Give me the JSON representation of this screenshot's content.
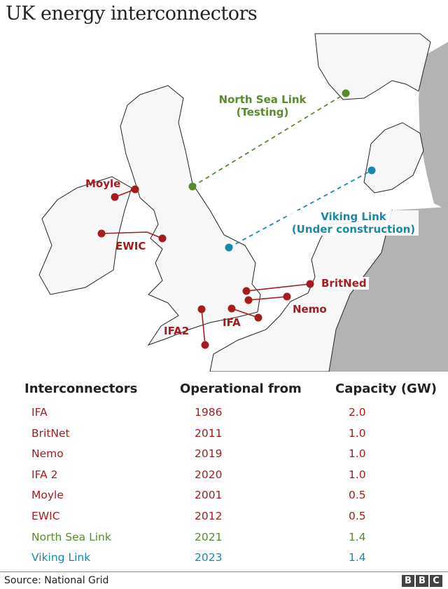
{
  "title": "UK energy interconnectors",
  "map": {
    "links": [
      {
        "label": "Moyle",
        "color": "#a51c1c",
        "style": "solid"
      },
      {
        "label": "EWIC",
        "color": "#a51c1c",
        "style": "solid"
      },
      {
        "label": "BritNed",
        "color": "#a51c1c",
        "style": "solid"
      },
      {
        "label": "Nemo",
        "color": "#a51c1c",
        "style": "solid"
      },
      {
        "label": "IFA",
        "color": "#a51c1c",
        "style": "solid"
      },
      {
        "label": "IFA2",
        "color": "#a51c1c",
        "style": "solid"
      },
      {
        "label": "North Sea Link",
        "sublabel": "(Testing)",
        "color": "#5a8a2e",
        "style": "dashed"
      },
      {
        "label": "Viking Link",
        "sublabel": "(Under construction)",
        "color": "#1a88aa",
        "style": "dashed"
      }
    ],
    "colors": {
      "land": "#f7f7f7",
      "sea": "#ffffff",
      "other_land": "#b3b3b3",
      "coast": "#222222"
    }
  },
  "table": {
    "headers": [
      "Interconnectors",
      "Operational from",
      "Capacity (GW)"
    ],
    "rows": [
      {
        "name": "IFA",
        "year": "1986",
        "capacity": "2.0",
        "color": "#a51c1c"
      },
      {
        "name": "BritNet",
        "year": "2011",
        "capacity": "1.0",
        "color": "#a51c1c"
      },
      {
        "name": "Nemo",
        "year": "2019",
        "capacity": "1.0",
        "color": "#a51c1c"
      },
      {
        "name": "IFA 2",
        "year": "2020",
        "capacity": "1.0",
        "color": "#a51c1c"
      },
      {
        "name": "Moyle",
        "year": "2001",
        "capacity": "0.5",
        "color": "#a51c1c"
      },
      {
        "name": "EWIC",
        "year": "2012",
        "capacity": "0.5",
        "color": "#a51c1c"
      },
      {
        "name": "North Sea Link",
        "year": "2021",
        "capacity": "1.4",
        "color": "#5a8a2e"
      },
      {
        "name": "Viking Link",
        "year": "2023",
        "capacity": "1.4",
        "color": "#1a88aa"
      }
    ]
  },
  "footer": {
    "source": "Source: National Grid",
    "logo": [
      "B",
      "B",
      "C"
    ]
  }
}
